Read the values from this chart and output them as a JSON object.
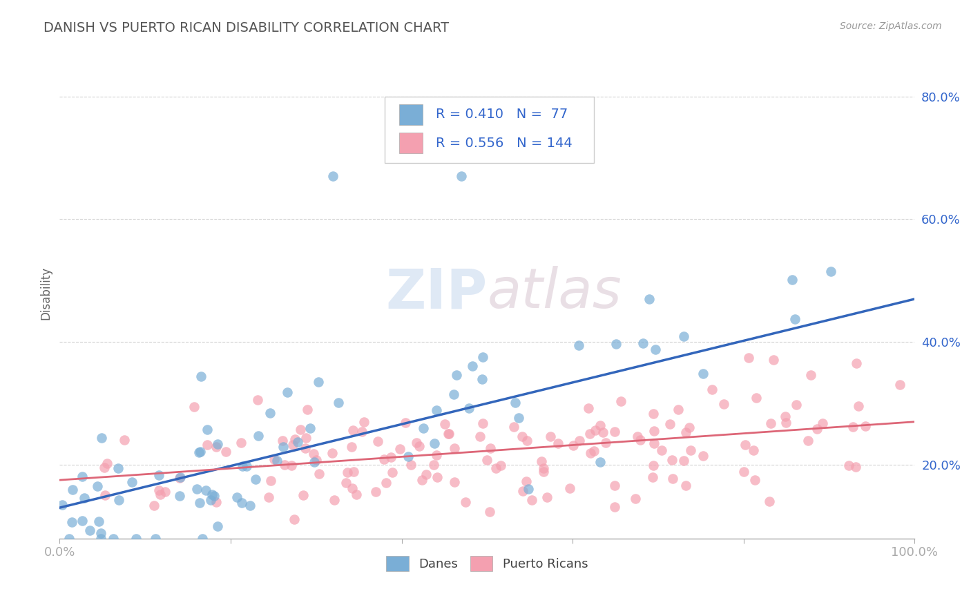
{
  "title": "DANISH VS PUERTO RICAN DISABILITY CORRELATION CHART",
  "source": "Source: ZipAtlas.com",
  "ylabel": "Disability",
  "yticks": [
    "20.0%",
    "40.0%",
    "60.0%",
    "80.0%"
  ],
  "ytick_vals": [
    0.2,
    0.4,
    0.6,
    0.8
  ],
  "xlim": [
    0.0,
    1.0
  ],
  "ylim": [
    0.08,
    0.88
  ],
  "danes_R": 0.41,
  "danes_N": 77,
  "pr_R": 0.556,
  "pr_N": 144,
  "danes_color": "#7aaed6",
  "pr_color": "#f4a0b0",
  "danes_line_color": "#3366bb",
  "pr_line_color": "#dd6677",
  "watermark": "ZIPatlas",
  "background_color": "#ffffff",
  "grid_color": "#cccccc",
  "title_color": "#555555",
  "legend_text_color": "#3366cc",
  "danes_intercept": 0.13,
  "danes_slope": 0.34,
  "pr_intercept": 0.175,
  "pr_slope": 0.095
}
